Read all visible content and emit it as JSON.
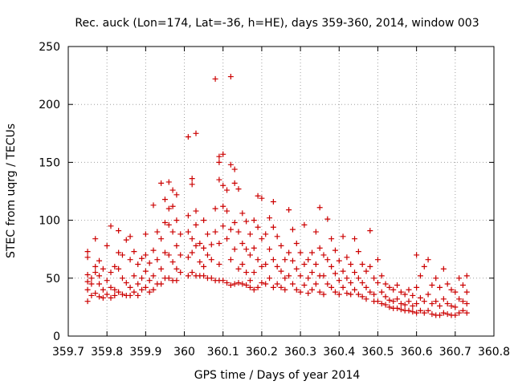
{
  "chart_data": {
    "type": "scatter",
    "title": "Rec. auck (Lon=174, Lat=-36, h=HE), days 359-360, 2014, window 003",
    "xlabel": "GPS time / Days of year 2014",
    "ylabel": "STEC from uqrg / TECUs",
    "xlim": [
      359.7,
      360.8
    ],
    "ylim": [
      0,
      250
    ],
    "x_ticks": [
      359.7,
      359.8,
      359.9,
      360.0,
      360.1,
      360.2,
      360.3,
      360.4,
      360.5,
      360.6,
      360.7,
      360.8
    ],
    "x_tick_labels": [
      "359.7",
      "359.8",
      "359.9",
      "360",
      "360.1",
      "360.2",
      "360.3",
      "360.4",
      "360.5",
      "360.6",
      "360.7",
      "360.8"
    ],
    "y_ticks": [
      0,
      50,
      100,
      150,
      200,
      250
    ],
    "y_tick_labels": [
      "0",
      "50",
      "100",
      "150",
      "200",
      "250"
    ],
    "grid": true,
    "marker": "plus",
    "color": "#cc0000",
    "points": [
      [
        359.75,
        73
      ],
      [
        359.75,
        68
      ],
      [
        359.75,
        53
      ],
      [
        359.75,
        47
      ],
      [
        359.75,
        40
      ],
      [
        359.75,
        30
      ],
      [
        359.76,
        50
      ],
      [
        359.76,
        45
      ],
      [
        359.76,
        35
      ],
      [
        359.77,
        84
      ],
      [
        359.77,
        60
      ],
      [
        359.77,
        55
      ],
      [
        359.77,
        37
      ],
      [
        359.78,
        65
      ],
      [
        359.78,
        52
      ],
      [
        359.78,
        45
      ],
      [
        359.78,
        34
      ],
      [
        359.79,
        58
      ],
      [
        359.79,
        40
      ],
      [
        359.79,
        33
      ],
      [
        359.8,
        78
      ],
      [
        359.8,
        48
      ],
      [
        359.8,
        36
      ],
      [
        359.81,
        95
      ],
      [
        359.81,
        55
      ],
      [
        359.81,
        42
      ],
      [
        359.81,
        33
      ],
      [
        359.82,
        60
      ],
      [
        359.82,
        40
      ],
      [
        359.82,
        35
      ],
      [
        359.83,
        91
      ],
      [
        359.83,
        72
      ],
      [
        359.83,
        58
      ],
      [
        359.83,
        38
      ],
      [
        359.84,
        70
      ],
      [
        359.84,
        50
      ],
      [
        359.84,
        36
      ],
      [
        359.85,
        83
      ],
      [
        359.85,
        46
      ],
      [
        359.85,
        35
      ],
      [
        359.86,
        86
      ],
      [
        359.86,
        66
      ],
      [
        359.86,
        42
      ],
      [
        359.86,
        35
      ],
      [
        359.87,
        73
      ],
      [
        359.87,
        52
      ],
      [
        359.87,
        38
      ],
      [
        359.88,
        62
      ],
      [
        359.88,
        45
      ],
      [
        359.88,
        35
      ],
      [
        359.89,
        67
      ],
      [
        359.89,
        50
      ],
      [
        359.89,
        40
      ],
      [
        359.9,
        88
      ],
      [
        359.9,
        70
      ],
      [
        359.9,
        56
      ],
      [
        359.9,
        42
      ],
      [
        359.91,
        63
      ],
      [
        359.91,
        48
      ],
      [
        359.91,
        38
      ],
      [
        359.92,
        113
      ],
      [
        359.92,
        74
      ],
      [
        359.92,
        52
      ],
      [
        359.92,
        40
      ],
      [
        359.93,
        90
      ],
      [
        359.93,
        66
      ],
      [
        359.93,
        45
      ],
      [
        359.94,
        132
      ],
      [
        359.94,
        84
      ],
      [
        359.94,
        58
      ],
      [
        359.94,
        45
      ],
      [
        359.95,
        118
      ],
      [
        359.95,
        98
      ],
      [
        359.95,
        72
      ],
      [
        359.95,
        50
      ],
      [
        359.96,
        133
      ],
      [
        359.96,
        110
      ],
      [
        359.96,
        96
      ],
      [
        359.96,
        70
      ],
      [
        359.96,
        50
      ],
      [
        359.97,
        126
      ],
      [
        359.97,
        112
      ],
      [
        359.97,
        90
      ],
      [
        359.97,
        64
      ],
      [
        359.97,
        48
      ],
      [
        359.98,
        122
      ],
      [
        359.98,
        100
      ],
      [
        359.98,
        78
      ],
      [
        359.98,
        58
      ],
      [
        359.98,
        48
      ],
      [
        359.99,
        88
      ],
      [
        359.99,
        70
      ],
      [
        359.99,
        55
      ],
      [
        360.01,
        172
      ],
      [
        360.01,
        104
      ],
      [
        360.01,
        90
      ],
      [
        360.01,
        68
      ],
      [
        360.01,
        52
      ],
      [
        360.02,
        136
      ],
      [
        360.02,
        131
      ],
      [
        360.02,
        84
      ],
      [
        360.02,
        72
      ],
      [
        360.02,
        55
      ],
      [
        360.03,
        175
      ],
      [
        360.03,
        108
      ],
      [
        360.03,
        96
      ],
      [
        360.03,
        78
      ],
      [
        360.03,
        52
      ],
      [
        360.04,
        80
      ],
      [
        360.04,
        64
      ],
      [
        360.04,
        52
      ],
      [
        360.05,
        100
      ],
      [
        360.05,
        76
      ],
      [
        360.05,
        60
      ],
      [
        360.05,
        52
      ],
      [
        360.06,
        88
      ],
      [
        360.06,
        70
      ],
      [
        360.06,
        50
      ],
      [
        360.07,
        79
      ],
      [
        360.07,
        66
      ],
      [
        360.07,
        50
      ],
      [
        360.08,
        222
      ],
      [
        360.08,
        110
      ],
      [
        360.08,
        90
      ],
      [
        360.08,
        48
      ],
      [
        360.09,
        155
      ],
      [
        360.09,
        150
      ],
      [
        360.09,
        135
      ],
      [
        360.09,
        80
      ],
      [
        360.09,
        62
      ],
      [
        360.09,
        48
      ],
      [
        360.1,
        157
      ],
      [
        360.1,
        130
      ],
      [
        360.1,
        112
      ],
      [
        360.1,
        95
      ],
      [
        360.1,
        48
      ],
      [
        360.11,
        126
      ],
      [
        360.11,
        108
      ],
      [
        360.11,
        84
      ],
      [
        360.11,
        46
      ],
      [
        360.12,
        224
      ],
      [
        360.12,
        148
      ],
      [
        360.12,
        92
      ],
      [
        360.12,
        66
      ],
      [
        360.12,
        44
      ],
      [
        360.13,
        144
      ],
      [
        360.13,
        132
      ],
      [
        360.13,
        98
      ],
      [
        360.13,
        75
      ],
      [
        360.13,
        45
      ],
      [
        360.14,
        127
      ],
      [
        360.14,
        90
      ],
      [
        360.14,
        58
      ],
      [
        360.14,
        46
      ],
      [
        360.15,
        106
      ],
      [
        360.15,
        80
      ],
      [
        360.15,
        62
      ],
      [
        360.15,
        45
      ],
      [
        360.16,
        99
      ],
      [
        360.16,
        75
      ],
      [
        360.16,
        55
      ],
      [
        360.16,
        44
      ],
      [
        360.17,
        88
      ],
      [
        360.17,
        70
      ],
      [
        360.17,
        48
      ],
      [
        360.17,
        42
      ],
      [
        360.18,
        100
      ],
      [
        360.18,
        76
      ],
      [
        360.18,
        55
      ],
      [
        360.18,
        40
      ],
      [
        360.19,
        121
      ],
      [
        360.19,
        94
      ],
      [
        360.19,
        66
      ],
      [
        360.19,
        42
      ],
      [
        360.2,
        119
      ],
      [
        360.2,
        84
      ],
      [
        360.2,
        60
      ],
      [
        360.2,
        46
      ],
      [
        360.21,
        88
      ],
      [
        360.21,
        62
      ],
      [
        360.21,
        45
      ],
      [
        360.22,
        102
      ],
      [
        360.22,
        75
      ],
      [
        360.22,
        50
      ],
      [
        360.23,
        116
      ],
      [
        360.23,
        94
      ],
      [
        360.23,
        66
      ],
      [
        360.23,
        42
      ],
      [
        360.24,
        86
      ],
      [
        360.24,
        60
      ],
      [
        360.24,
        45
      ],
      [
        360.25,
        78
      ],
      [
        360.25,
        56
      ],
      [
        360.25,
        42
      ],
      [
        360.26,
        66
      ],
      [
        360.26,
        50
      ],
      [
        360.26,
        40
      ],
      [
        360.27,
        109
      ],
      [
        360.27,
        72
      ],
      [
        360.27,
        52
      ],
      [
        360.28,
        92
      ],
      [
        360.28,
        65
      ],
      [
        360.28,
        45
      ],
      [
        360.29,
        80
      ],
      [
        360.29,
        58
      ],
      [
        360.29,
        40
      ],
      [
        360.3,
        72
      ],
      [
        360.3,
        52
      ],
      [
        360.3,
        38
      ],
      [
        360.31,
        96
      ],
      [
        360.31,
        62
      ],
      [
        360.31,
        44
      ],
      [
        360.32,
        66
      ],
      [
        360.32,
        50
      ],
      [
        360.32,
        37
      ],
      [
        360.33,
        72
      ],
      [
        360.33,
        55
      ],
      [
        360.33,
        40
      ],
      [
        360.34,
        90
      ],
      [
        360.34,
        62
      ],
      [
        360.34,
        45
      ],
      [
        360.35,
        111
      ],
      [
        360.35,
        76
      ],
      [
        360.35,
        52
      ],
      [
        360.35,
        38
      ],
      [
        360.36,
        70
      ],
      [
        360.36,
        52
      ],
      [
        360.36,
        36
      ],
      [
        360.37,
        101
      ],
      [
        360.37,
        66
      ],
      [
        360.37,
        45
      ],
      [
        360.38,
        84
      ],
      [
        360.38,
        60
      ],
      [
        360.38,
        42
      ],
      [
        360.39,
        74
      ],
      [
        360.39,
        54
      ],
      [
        360.39,
        38
      ],
      [
        360.4,
        65
      ],
      [
        360.4,
        48
      ],
      [
        360.4,
        36
      ],
      [
        360.41,
        86
      ],
      [
        360.41,
        56
      ],
      [
        360.41,
        42
      ],
      [
        360.42,
        68
      ],
      [
        360.42,
        50
      ],
      [
        360.42,
        37
      ],
      [
        360.43,
        62
      ],
      [
        360.43,
        46
      ],
      [
        360.43,
        36
      ],
      [
        360.44,
        84
      ],
      [
        360.44,
        55
      ],
      [
        360.44,
        40
      ],
      [
        360.45,
        73
      ],
      [
        360.45,
        50
      ],
      [
        360.45,
        36
      ],
      [
        360.46,
        62
      ],
      [
        360.46,
        46
      ],
      [
        360.46,
        34
      ],
      [
        360.47,
        56
      ],
      [
        360.47,
        42
      ],
      [
        360.47,
        32
      ],
      [
        360.48,
        91
      ],
      [
        360.48,
        60
      ],
      [
        360.48,
        38
      ],
      [
        360.49,
        50
      ],
      [
        360.49,
        36
      ],
      [
        360.49,
        30
      ],
      [
        360.5,
        66
      ],
      [
        360.5,
        46
      ],
      [
        360.5,
        30
      ],
      [
        360.51,
        52
      ],
      [
        360.51,
        38
      ],
      [
        360.51,
        28
      ],
      [
        360.52,
        45
      ],
      [
        360.52,
        34
      ],
      [
        360.52,
        27
      ],
      [
        360.53,
        42
      ],
      [
        360.53,
        31
      ],
      [
        360.53,
        25
      ],
      [
        360.54,
        40
      ],
      [
        360.54,
        30
      ],
      [
        360.54,
        24
      ],
      [
        360.55,
        44
      ],
      [
        360.55,
        32
      ],
      [
        360.55,
        24
      ],
      [
        360.56,
        38
      ],
      [
        360.56,
        28
      ],
      [
        360.56,
        23
      ],
      [
        360.57,
        36
      ],
      [
        360.57,
        27
      ],
      [
        360.57,
        22
      ],
      [
        360.58,
        40
      ],
      [
        360.58,
        30
      ],
      [
        360.58,
        22
      ],
      [
        360.59,
        35
      ],
      [
        360.59,
        26
      ],
      [
        360.59,
        21
      ],
      [
        360.6,
        70
      ],
      [
        360.6,
        42
      ],
      [
        360.6,
        28
      ],
      [
        360.6,
        20
      ],
      [
        360.61,
        52
      ],
      [
        360.61,
        33
      ],
      [
        360.61,
        22
      ],
      [
        360.62,
        60
      ],
      [
        360.62,
        30
      ],
      [
        360.62,
        20
      ],
      [
        360.63,
        66
      ],
      [
        360.63,
        36
      ],
      [
        360.63,
        22
      ],
      [
        360.64,
        44
      ],
      [
        360.64,
        28
      ],
      [
        360.64,
        19
      ],
      [
        360.65,
        50
      ],
      [
        360.65,
        30
      ],
      [
        360.65,
        18
      ],
      [
        360.66,
        42
      ],
      [
        360.66,
        26
      ],
      [
        360.66,
        18
      ],
      [
        360.67,
        58
      ],
      [
        360.67,
        32
      ],
      [
        360.67,
        20
      ],
      [
        360.68,
        45
      ],
      [
        360.68,
        28
      ],
      [
        360.68,
        19
      ],
      [
        360.69,
        40
      ],
      [
        360.69,
        26
      ],
      [
        360.69,
        18
      ],
      [
        360.7,
        38
      ],
      [
        360.7,
        25
      ],
      [
        360.7,
        18
      ],
      [
        360.71,
        50
      ],
      [
        360.71,
        32
      ],
      [
        360.71,
        20
      ],
      [
        360.72,
        44
      ],
      [
        360.72,
        30
      ],
      [
        360.72,
        22
      ],
      [
        360.73,
        52
      ],
      [
        360.73,
        38
      ],
      [
        360.73,
        28
      ],
      [
        360.73,
        20
      ]
    ]
  }
}
